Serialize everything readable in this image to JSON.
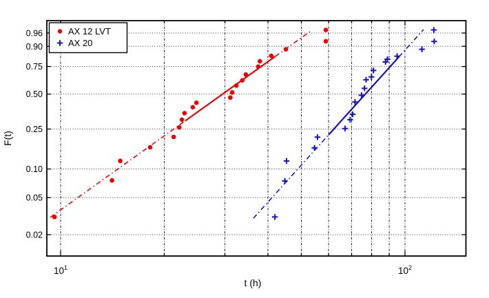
{
  "chart_data": {
    "type": "scatter",
    "plot_style": "weibull-probability-plot",
    "title": "",
    "xlabel": "t (h)",
    "ylabel": "F(t)",
    "x_scale": "log10",
    "y_scale": "weibull-probability",
    "xlim": [
      9.1,
      150
    ],
    "ylim": [
      0.012,
      0.988
    ],
    "grid": true,
    "x_major_ticks": [
      {
        "value": 10,
        "base": "10",
        "exp": "1"
      },
      {
        "value": 100,
        "base": "10",
        "exp": "2"
      }
    ],
    "x_minor_gridlines": [
      20,
      30,
      40,
      50,
      60,
      70,
      80,
      90
    ],
    "y_ticks": [
      {
        "label": "0.96",
        "value": 0.96
      },
      {
        "label": "0.90",
        "value": 0.9
      },
      {
        "label": "0.75",
        "value": 0.75
      },
      {
        "label": "0.50",
        "value": 0.5
      },
      {
        "label": "0.25",
        "value": 0.25
      },
      {
        "label": "0.10",
        "value": 0.1
      },
      {
        "label": "0.05",
        "value": 0.05
      },
      {
        "label": "0.02",
        "value": 0.02
      }
    ],
    "legend": {
      "position": "top-left",
      "entries": [
        {
          "label": "AX 12 LVT",
          "marker": "dot",
          "color": "#f00000"
        },
        {
          "label": "AX 20",
          "marker": "plus",
          "color": "#1212cd"
        }
      ]
    },
    "series": [
      {
        "name": "AX 12 LVT",
        "marker": "dot",
        "color": "#f00000",
        "points_tF": [
          [
            9.6,
            0.031
          ],
          [
            14.1,
            0.076
          ],
          [
            14.9,
            0.121
          ],
          [
            18.2,
            0.166
          ],
          [
            21.3,
            0.21
          ],
          [
            22.1,
            0.259
          ],
          [
            22.5,
            0.305
          ],
          [
            22.9,
            0.349
          ],
          [
            24.2,
            0.392
          ],
          [
            24.8,
            0.427
          ],
          [
            31.1,
            0.47
          ],
          [
            31.5,
            0.514
          ],
          [
            32.4,
            0.576
          ],
          [
            33.7,
            0.624
          ],
          [
            34.5,
            0.678
          ],
          [
            37.5,
            0.749
          ],
          [
            37.9,
            0.794
          ],
          [
            40.9,
            0.837
          ],
          [
            45.1,
            0.882
          ],
          [
            58.9,
            0.927
          ],
          [
            58.9,
            0.969
          ]
        ],
        "fit_line": {
          "from": [
            9.33,
            0.0307
          ],
          "to": [
            53.6,
            0.968
          ],
          "solid_from_t": 23.0,
          "solid_to_t": 42.0,
          "style_outside": "dash-dot",
          "style_inside": "solid"
        }
      },
      {
        "name": "AX 20",
        "marker": "plus",
        "color": "#1212cd",
        "points_tF": [
          [
            41.9,
            0.031
          ],
          [
            44.8,
            0.075
          ],
          [
            45.3,
            0.121
          ],
          [
            54.6,
            0.164
          ],
          [
            55.7,
            0.209
          ],
          [
            67.0,
            0.253
          ],
          [
            69.3,
            0.305
          ],
          [
            70.5,
            0.341
          ],
          [
            71.6,
            0.433
          ],
          [
            74.8,
            0.49
          ],
          [
            76.3,
            0.551
          ],
          [
            77.1,
            0.63
          ],
          [
            79.9,
            0.656
          ],
          [
            81.0,
            0.715
          ],
          [
            87.8,
            0.789
          ],
          [
            88.9,
            0.811
          ],
          [
            94.9,
            0.834
          ],
          [
            112.0,
            0.882
          ],
          [
            121.6,
            0.926
          ],
          [
            121.3,
            0.969
          ]
        ],
        "fit_line": {
          "from": [
            36.3,
            0.0301
          ],
          "to": [
            113.2,
            0.97
          ],
          "solid_from_t": 60.0,
          "solid_to_t": 96.0,
          "style_outside": "dash-dot",
          "style_inside": "solid"
        }
      }
    ]
  }
}
